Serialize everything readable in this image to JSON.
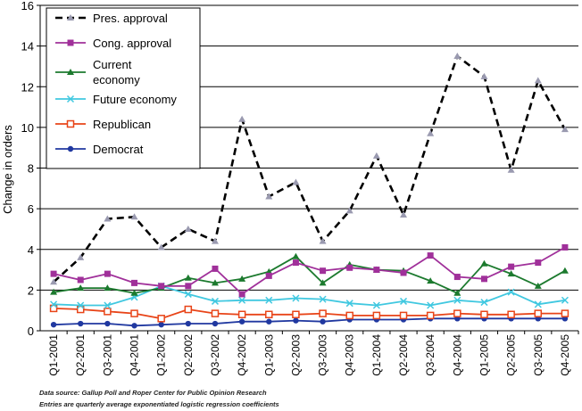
{
  "chart_data": {
    "type": "line",
    "ylabel": "Change in orders",
    "xlabel": "",
    "ylim": [
      0,
      16
    ],
    "yticks": [
      0,
      2,
      4,
      6,
      8,
      10,
      12,
      14,
      16
    ],
    "grid": "horizontal",
    "legend_position": "top-left",
    "categories": [
      "Q1-2001",
      "Q2-2001",
      "Q3-2001",
      "Q4-2001",
      "Q1-2002",
      "Q2-2002",
      "Q3-2002",
      "Q4-2002",
      "Q1-2003",
      "Q2-2003",
      "Q3-2003",
      "Q4-2003",
      "Q1-2004",
      "Q2-2004",
      "Q3-2004",
      "Q4-2004",
      "Q1-2005",
      "Q2-2005",
      "Q3-2005",
      "Q4-2005"
    ],
    "series": [
      {
        "name": "Pres. approval",
        "color": "#000000",
        "marker": "triangle",
        "marker_color": "#9a9ab0",
        "dash": true,
        "values": [
          2.4,
          3.6,
          5.5,
          5.6,
          4.1,
          5.0,
          4.4,
          10.4,
          6.6,
          7.3,
          4.4,
          5.9,
          8.6,
          5.7,
          9.7,
          13.5,
          12.5,
          7.9,
          12.3,
          9.9
        ]
      },
      {
        "name": "Cong. approval",
        "color": "#a0309a",
        "marker": "square",
        "values": [
          2.8,
          2.5,
          2.8,
          2.35,
          2.2,
          2.2,
          3.05,
          1.8,
          2.7,
          3.35,
          2.95,
          3.1,
          3.0,
          2.85,
          3.7,
          2.65,
          2.55,
          3.15,
          3.35,
          4.1
        ]
      },
      {
        "name": "Current economy",
        "color": "#1c7a2e",
        "marker": "triangle",
        "values": [
          1.9,
          2.1,
          2.1,
          1.85,
          2.1,
          2.6,
          2.35,
          2.55,
          2.9,
          3.65,
          2.35,
          3.25,
          3.0,
          2.95,
          2.45,
          1.85,
          3.3,
          2.8,
          2.2,
          2.95
        ]
      },
      {
        "name": "Future economy",
        "color": "#40c8e0",
        "marker": "x",
        "values": [
          1.3,
          1.25,
          1.25,
          1.65,
          2.2,
          1.8,
          1.45,
          1.5,
          1.5,
          1.6,
          1.55,
          1.35,
          1.25,
          1.45,
          1.25,
          1.5,
          1.4,
          1.9,
          1.3,
          1.5
        ]
      },
      {
        "name": "Republican",
        "color": "#e84418",
        "marker": "square-open",
        "values": [
          1.1,
          1.05,
          0.95,
          0.85,
          0.6,
          1.05,
          0.85,
          0.8,
          0.8,
          0.8,
          0.85,
          0.75,
          0.75,
          0.75,
          0.75,
          0.85,
          0.8,
          0.8,
          0.85,
          0.85
        ]
      },
      {
        "name": "Democrat",
        "color": "#2038a0",
        "marker": "circle",
        "values": [
          0.3,
          0.35,
          0.35,
          0.25,
          0.3,
          0.35,
          0.35,
          0.45,
          0.45,
          0.5,
          0.45,
          0.55,
          0.55,
          0.55,
          0.6,
          0.6,
          0.6,
          0.6,
          0.6,
          0.6
        ]
      }
    ]
  },
  "footer": {
    "source_line1": "Data source:  Gallup Poll and Roper Center for Public Opinion Research",
    "source_line2": "Entries are quarterly average exponentiated logistic regression coefficients"
  }
}
